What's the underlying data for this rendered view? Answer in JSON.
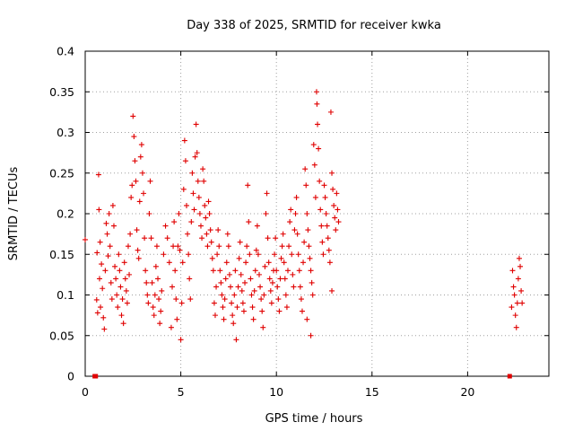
{
  "chart_data": {
    "type": "scatter",
    "title": "Day 338 of 2025, SRMTID for receiver kwka",
    "xlabel": "GPS time / hours",
    "ylabel": "SRMTID / TECUs",
    "xlim": [
      0,
      24.25
    ],
    "ylim": [
      0,
      0.4
    ],
    "x_ticks": [
      0,
      5,
      10,
      15,
      20
    ],
    "x_tick_labels": [
      "0",
      "5",
      "10",
      "15",
      "20"
    ],
    "y_ticks": [
      0,
      0.05,
      0.1,
      0.15,
      0.2,
      0.25,
      0.3,
      0.35,
      0.4
    ],
    "y_tick_labels": [
      "0",
      "0.05",
      "0.1",
      "0.15",
      "0.2",
      "0.25",
      "0.3",
      "0.35",
      "0.4"
    ],
    "grid": true,
    "marker": "plus",
    "color": "#e00000",
    "series": [
      {
        "name": "SRMTID",
        "points": [
          [
            0.0,
            0.168
          ],
          [
            0.5,
            0.0
          ],
          [
            0.55,
            0.0
          ],
          [
            0.6,
            0.094
          ],
          [
            0.62,
            0.152
          ],
          [
            0.65,
            0.078
          ],
          [
            0.7,
            0.248
          ],
          [
            0.72,
            0.205
          ],
          [
            0.75,
            0.12
          ],
          [
            0.78,
            0.165
          ],
          [
            0.8,
            0.085
          ],
          [
            0.85,
            0.138
          ],
          [
            0.9,
            0.108
          ],
          [
            0.95,
            0.072
          ],
          [
            1.0,
            0.058
          ],
          [
            1.05,
            0.13
          ],
          [
            1.1,
            0.188
          ],
          [
            1.15,
            0.175
          ],
          [
            1.2,
            0.148
          ],
          [
            1.25,
            0.2
          ],
          [
            1.3,
            0.16
          ],
          [
            1.35,
            0.115
          ],
          [
            1.4,
            0.095
          ],
          [
            1.45,
            0.21
          ],
          [
            1.5,
            0.185
          ],
          [
            1.55,
            0.135
          ],
          [
            1.6,
            0.12
          ],
          [
            1.65,
            0.1
          ],
          [
            1.7,
            0.085
          ],
          [
            1.75,
            0.15
          ],
          [
            1.8,
            0.13
          ],
          [
            1.85,
            0.11
          ],
          [
            1.9,
            0.075
          ],
          [
            1.95,
            0.095
          ],
          [
            2.0,
            0.065
          ],
          [
            2.05,
            0.14
          ],
          [
            2.1,
            0.12
          ],
          [
            2.15,
            0.105
          ],
          [
            2.2,
            0.09
          ],
          [
            2.25,
            0.16
          ],
          [
            2.3,
            0.125
          ],
          [
            2.35,
            0.175
          ],
          [
            2.4,
            0.22
          ],
          [
            2.45,
            0.235
          ],
          [
            2.5,
            0.32
          ],
          [
            2.55,
            0.295
          ],
          [
            2.6,
            0.265
          ],
          [
            2.65,
            0.24
          ],
          [
            2.7,
            0.18
          ],
          [
            2.75,
            0.155
          ],
          [
            2.8,
            0.145
          ],
          [
            2.85,
            0.215
          ],
          [
            2.9,
            0.27
          ],
          [
            2.95,
            0.285
          ],
          [
            3.0,
            0.25
          ],
          [
            3.05,
            0.225
          ],
          [
            3.1,
            0.17
          ],
          [
            3.15,
            0.13
          ],
          [
            3.2,
            0.115
          ],
          [
            3.25,
            0.1
          ],
          [
            3.3,
            0.09
          ],
          [
            3.35,
            0.2
          ],
          [
            3.4,
            0.24
          ],
          [
            3.45,
            0.17
          ],
          [
            3.5,
            0.115
          ],
          [
            3.55,
            0.085
          ],
          [
            3.6,
            0.075
          ],
          [
            3.65,
            0.1
          ],
          [
            3.7,
            0.135
          ],
          [
            3.75,
            0.16
          ],
          [
            3.8,
            0.12
          ],
          [
            3.85,
            0.095
          ],
          [
            3.9,
            0.065
          ],
          [
            3.95,
            0.08
          ],
          [
            4.0,
            0.105
          ],
          [
            4.1,
            0.15
          ],
          [
            4.2,
            0.185
          ],
          [
            4.3,
            0.17
          ],
          [
            4.4,
            0.14
          ],
          [
            4.5,
            0.06
          ],
          [
            4.55,
            0.11
          ],
          [
            4.6,
            0.16
          ],
          [
            4.65,
            0.19
          ],
          [
            4.7,
            0.13
          ],
          [
            4.75,
            0.095
          ],
          [
            4.8,
            0.07
          ],
          [
            4.85,
            0.16
          ],
          [
            4.9,
            0.2
          ],
          [
            4.95,
            0.155
          ],
          [
            5.0,
            0.045
          ],
          [
            5.05,
            0.09
          ],
          [
            5.1,
            0.14
          ],
          [
            5.15,
            0.23
          ],
          [
            5.2,
            0.29
          ],
          [
            5.25,
            0.265
          ],
          [
            5.3,
            0.21
          ],
          [
            5.35,
            0.175
          ],
          [
            5.4,
            0.15
          ],
          [
            5.45,
            0.12
          ],
          [
            5.5,
            0.095
          ],
          [
            5.55,
            0.19
          ],
          [
            5.6,
            0.25
          ],
          [
            5.65,
            0.225
          ],
          [
            5.7,
            0.205
          ],
          [
            5.75,
            0.27
          ],
          [
            5.8,
            0.31
          ],
          [
            5.85,
            0.275
          ],
          [
            5.9,
            0.24
          ],
          [
            5.95,
            0.22
          ],
          [
            6.0,
            0.2
          ],
          [
            6.05,
            0.185
          ],
          [
            6.1,
            0.17
          ],
          [
            6.15,
            0.255
          ],
          [
            6.2,
            0.24
          ],
          [
            6.25,
            0.21
          ],
          [
            6.3,
            0.195
          ],
          [
            6.35,
            0.175
          ],
          [
            6.4,
            0.16
          ],
          [
            6.45,
            0.215
          ],
          [
            6.5,
            0.2
          ],
          [
            6.55,
            0.18
          ],
          [
            6.6,
            0.165
          ],
          [
            6.65,
            0.145
          ],
          [
            6.7,
            0.13
          ],
          [
            6.75,
            0.09
          ],
          [
            6.8,
            0.075
          ],
          [
            6.85,
            0.11
          ],
          [
            6.9,
            0.15
          ],
          [
            6.95,
            0.18
          ],
          [
            7.0,
            0.16
          ],
          [
            7.05,
            0.13
          ],
          [
            7.1,
            0.115
          ],
          [
            7.15,
            0.1
          ],
          [
            7.2,
            0.085
          ],
          [
            7.25,
            0.07
          ],
          [
            7.3,
            0.095
          ],
          [
            7.35,
            0.12
          ],
          [
            7.4,
            0.14
          ],
          [
            7.45,
            0.175
          ],
          [
            7.5,
            0.16
          ],
          [
            7.55,
            0.125
          ],
          [
            7.6,
            0.11
          ],
          [
            7.65,
            0.09
          ],
          [
            7.7,
            0.075
          ],
          [
            7.75,
            0.065
          ],
          [
            7.8,
            0.1
          ],
          [
            7.85,
            0.13
          ],
          [
            7.9,
            0.045
          ],
          [
            7.95,
            0.085
          ],
          [
            8.0,
            0.11
          ],
          [
            8.05,
            0.145
          ],
          [
            8.1,
            0.165
          ],
          [
            8.15,
            0.125
          ],
          [
            8.2,
            0.105
          ],
          [
            8.25,
            0.09
          ],
          [
            8.3,
            0.08
          ],
          [
            8.35,
            0.115
          ],
          [
            8.4,
            0.14
          ],
          [
            8.45,
            0.16
          ],
          [
            8.5,
            0.235
          ],
          [
            8.55,
            0.19
          ],
          [
            8.6,
            0.15
          ],
          [
            8.65,
            0.12
          ],
          [
            8.7,
            0.1
          ],
          [
            8.75,
            0.085
          ],
          [
            8.8,
            0.07
          ],
          [
            8.85,
            0.105
          ],
          [
            8.9,
            0.13
          ],
          [
            8.95,
            0.155
          ],
          [
            9.0,
            0.185
          ],
          [
            9.05,
            0.15
          ],
          [
            9.1,
            0.125
          ],
          [
            9.15,
            0.11
          ],
          [
            9.2,
            0.095
          ],
          [
            9.25,
            0.08
          ],
          [
            9.3,
            0.06
          ],
          [
            9.35,
            0.1
          ],
          [
            9.4,
            0.135
          ],
          [
            9.45,
            0.2
          ],
          [
            9.5,
            0.225
          ],
          [
            9.55,
            0.17
          ],
          [
            9.6,
            0.14
          ],
          [
            9.65,
            0.12
          ],
          [
            9.7,
            0.105
          ],
          [
            9.75,
            0.09
          ],
          [
            9.8,
            0.115
          ],
          [
            9.85,
            0.13
          ],
          [
            9.9,
            0.15
          ],
          [
            9.95,
            0.17
          ],
          [
            10.0,
            0.13
          ],
          [
            10.05,
            0.11
          ],
          [
            10.1,
            0.095
          ],
          [
            10.15,
            0.08
          ],
          [
            10.2,
            0.12
          ],
          [
            10.25,
            0.145
          ],
          [
            10.3,
            0.16
          ],
          [
            10.35,
            0.175
          ],
          [
            10.4,
            0.14
          ],
          [
            10.45,
            0.12
          ],
          [
            10.5,
            0.1
          ],
          [
            10.55,
            0.085
          ],
          [
            10.6,
            0.13
          ],
          [
            10.65,
            0.16
          ],
          [
            10.7,
            0.19
          ],
          [
            10.75,
            0.205
          ],
          [
            10.8,
            0.15
          ],
          [
            10.85,
            0.125
          ],
          [
            10.9,
            0.11
          ],
          [
            10.95,
            0.18
          ],
          [
            11.0,
            0.2
          ],
          [
            11.05,
            0.22
          ],
          [
            11.1,
            0.175
          ],
          [
            11.15,
            0.15
          ],
          [
            11.2,
            0.13
          ],
          [
            11.25,
            0.11
          ],
          [
            11.3,
            0.095
          ],
          [
            11.35,
            0.08
          ],
          [
            11.4,
            0.14
          ],
          [
            11.45,
            0.165
          ],
          [
            11.5,
            0.255
          ],
          [
            11.55,
            0.235
          ],
          [
            11.6,
            0.2
          ],
          [
            11.65,
            0.18
          ],
          [
            11.7,
            0.16
          ],
          [
            11.75,
            0.145
          ],
          [
            11.8,
            0.13
          ],
          [
            11.85,
            0.115
          ],
          [
            11.9,
            0.1
          ],
          [
            11.95,
            0.285
          ],
          [
            12.0,
            0.26
          ],
          [
            12.05,
            0.22
          ],
          [
            12.1,
            0.35
          ],
          [
            12.12,
            0.335
          ],
          [
            12.15,
            0.31
          ],
          [
            12.2,
            0.28
          ],
          [
            12.25,
            0.24
          ],
          [
            12.3,
            0.205
          ],
          [
            12.35,
            0.185
          ],
          [
            12.4,
            0.165
          ],
          [
            12.45,
            0.15
          ],
          [
            12.5,
            0.235
          ],
          [
            12.55,
            0.22
          ],
          [
            12.6,
            0.2
          ],
          [
            12.65,
            0.185
          ],
          [
            12.7,
            0.17
          ],
          [
            12.75,
            0.155
          ],
          [
            12.8,
            0.14
          ],
          [
            12.85,
            0.325
          ],
          [
            12.9,
            0.25
          ],
          [
            12.95,
            0.23
          ],
          [
            13.0,
            0.21
          ],
          [
            13.05,
            0.195
          ],
          [
            13.1,
            0.18
          ],
          [
            13.15,
            0.225
          ],
          [
            13.2,
            0.205
          ],
          [
            13.25,
            0.19
          ],
          [
            12.9,
            0.105
          ],
          [
            11.8,
            0.05
          ],
          [
            11.6,
            0.07
          ],
          [
            22.2,
            0.0
          ],
          [
            22.3,
            0.085
          ],
          [
            22.35,
            0.13
          ],
          [
            22.4,
            0.11
          ],
          [
            22.45,
            0.1
          ],
          [
            22.5,
            0.075
          ],
          [
            22.55,
            0.06
          ],
          [
            22.6,
            0.09
          ],
          [
            22.65,
            0.12
          ],
          [
            22.7,
            0.145
          ],
          [
            22.75,
            0.135
          ],
          [
            22.8,
            0.105
          ],
          [
            22.85,
            0.09
          ]
        ]
      }
    ]
  }
}
